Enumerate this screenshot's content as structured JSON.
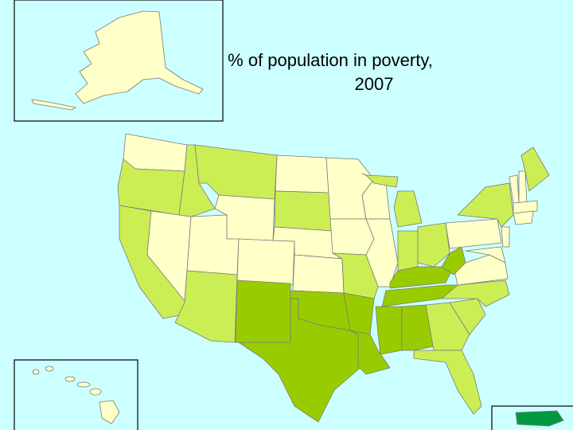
{
  "map": {
    "title_lines": [
      "% of population in poverty,",
      "2007"
    ]
  }
}
